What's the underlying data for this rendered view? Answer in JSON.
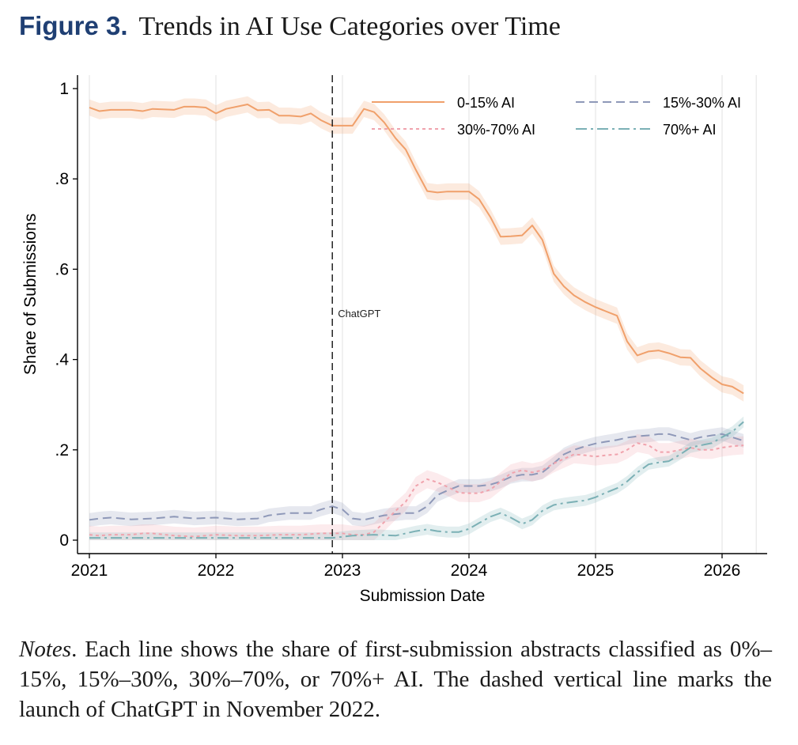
{
  "figure": {
    "label": "Figure 3.",
    "title": "Trends in AI Use Categories over Time"
  },
  "notes": {
    "label": "Notes",
    "text": ". Each line shows the share of first-submission abstracts classified as 0%–15%, 15%–30%, 30%–70%, or 70%+ AI. The dashed vertical line marks the launch of ChatGPT in November 2022."
  },
  "chart_data": {
    "type": "line",
    "title": "Trends in AI Use Categories over Time",
    "xlabel": "Submission Date",
    "ylabel": "Share of Submissions",
    "xlim": [
      2021.0,
      2026.35
    ],
    "ylim": [
      0,
      1
    ],
    "x_ticks": [
      {
        "value": 2021,
        "label": "2021"
      },
      {
        "value": 2022,
        "label": "2022"
      },
      {
        "value": 2023,
        "label": "2023"
      },
      {
        "value": 2024,
        "label": "2024"
      },
      {
        "value": 2025,
        "label": "2025"
      },
      {
        "value": 2026,
        "label": "2026"
      }
    ],
    "y_ticks": [
      {
        "value": 0,
        "label": "0"
      },
      {
        "value": 0.2,
        "label": ".2"
      },
      {
        "value": 0.4,
        "label": ".4"
      },
      {
        "value": 0.6,
        "label": ".6"
      },
      {
        "value": 0.8,
        "label": ".8"
      },
      {
        "value": 1,
        "label": "1"
      }
    ],
    "grid": "vertical",
    "legend_position": "top-right",
    "confidence_band": true,
    "annotation": {
      "label": "ChatGPT",
      "x": 2022.92,
      "style": "dashed vertical line"
    },
    "series": [
      {
        "name": "0-15% AI",
        "color": "#f0a06b",
        "dash": "solid",
        "band": 0.018,
        "points": [
          [
            2021.0,
            0.958
          ],
          [
            2021.08,
            0.95
          ],
          [
            2021.17,
            0.953
          ],
          [
            2021.33,
            0.953
          ],
          [
            2021.42,
            0.95
          ],
          [
            2021.5,
            0.955
          ],
          [
            2021.67,
            0.953
          ],
          [
            2021.75,
            0.96
          ],
          [
            2021.83,
            0.96
          ],
          [
            2021.92,
            0.958
          ],
          [
            2022.0,
            0.945
          ],
          [
            2022.08,
            0.955
          ],
          [
            2022.25,
            0.965
          ],
          [
            2022.33,
            0.952
          ],
          [
            2022.42,
            0.953
          ],
          [
            2022.5,
            0.94
          ],
          [
            2022.58,
            0.94
          ],
          [
            2022.67,
            0.938
          ],
          [
            2022.75,
            0.945
          ],
          [
            2022.83,
            0.93
          ],
          [
            2022.92,
            0.918
          ],
          [
            2023.0,
            0.918
          ],
          [
            2023.08,
            0.918
          ],
          [
            2023.17,
            0.955
          ],
          [
            2023.25,
            0.948
          ],
          [
            2023.33,
            0.925
          ],
          [
            2023.42,
            0.89
          ],
          [
            2023.5,
            0.865
          ],
          [
            2023.58,
            0.82
          ],
          [
            2023.67,
            0.773
          ],
          [
            2023.75,
            0.77
          ],
          [
            2023.83,
            0.772
          ],
          [
            2023.92,
            0.772
          ],
          [
            2024.0,
            0.772
          ],
          [
            2024.08,
            0.755
          ],
          [
            2024.17,
            0.715
          ],
          [
            2024.25,
            0.672
          ],
          [
            2024.33,
            0.673
          ],
          [
            2024.42,
            0.675
          ],
          [
            2024.5,
            0.697
          ],
          [
            2024.58,
            0.665
          ],
          [
            2024.67,
            0.59
          ],
          [
            2024.75,
            0.562
          ],
          [
            2024.83,
            0.542
          ],
          [
            2024.92,
            0.527
          ],
          [
            2025.0,
            0.516
          ],
          [
            2025.08,
            0.507
          ],
          [
            2025.17,
            0.497
          ],
          [
            2025.25,
            0.44
          ],
          [
            2025.33,
            0.409
          ],
          [
            2025.42,
            0.418
          ],
          [
            2025.5,
            0.42
          ],
          [
            2025.58,
            0.414
          ],
          [
            2025.67,
            0.405
          ],
          [
            2025.75,
            0.404
          ],
          [
            2025.83,
            0.38
          ],
          [
            2025.92,
            0.36
          ],
          [
            2026.0,
            0.345
          ],
          [
            2026.08,
            0.34
          ],
          [
            2026.17,
            0.325
          ]
        ]
      },
      {
        "name": "15%-30% AI",
        "color": "#8e98b8",
        "dash": "dashed",
        "band": 0.015,
        "points": [
          [
            2021.0,
            0.045
          ],
          [
            2021.08,
            0.048
          ],
          [
            2021.17,
            0.05
          ],
          [
            2021.33,
            0.046
          ],
          [
            2021.5,
            0.048
          ],
          [
            2021.67,
            0.052
          ],
          [
            2021.83,
            0.048
          ],
          [
            2022.0,
            0.05
          ],
          [
            2022.17,
            0.046
          ],
          [
            2022.33,
            0.048
          ],
          [
            2022.42,
            0.055
          ],
          [
            2022.58,
            0.06
          ],
          [
            2022.75,
            0.06
          ],
          [
            2022.83,
            0.068
          ],
          [
            2022.92,
            0.075
          ],
          [
            2023.0,
            0.068
          ],
          [
            2023.08,
            0.048
          ],
          [
            2023.17,
            0.045
          ],
          [
            2023.33,
            0.055
          ],
          [
            2023.5,
            0.06
          ],
          [
            2023.58,
            0.06
          ],
          [
            2023.67,
            0.075
          ],
          [
            2023.75,
            0.1
          ],
          [
            2023.83,
            0.11
          ],
          [
            2023.92,
            0.12
          ],
          [
            2024.0,
            0.12
          ],
          [
            2024.08,
            0.12
          ],
          [
            2024.17,
            0.123
          ],
          [
            2024.25,
            0.13
          ],
          [
            2024.33,
            0.14
          ],
          [
            2024.42,
            0.145
          ],
          [
            2024.5,
            0.145
          ],
          [
            2024.58,
            0.15
          ],
          [
            2024.67,
            0.17
          ],
          [
            2024.75,
            0.19
          ],
          [
            2024.83,
            0.2
          ],
          [
            2024.92,
            0.208
          ],
          [
            2025.0,
            0.214
          ],
          [
            2025.08,
            0.218
          ],
          [
            2025.17,
            0.222
          ],
          [
            2025.25,
            0.227
          ],
          [
            2025.33,
            0.23
          ],
          [
            2025.42,
            0.232
          ],
          [
            2025.5,
            0.235
          ],
          [
            2025.58,
            0.235
          ],
          [
            2025.67,
            0.228
          ],
          [
            2025.75,
            0.222
          ],
          [
            2025.83,
            0.228
          ],
          [
            2025.92,
            0.232
          ],
          [
            2026.0,
            0.235
          ],
          [
            2026.08,
            0.228
          ],
          [
            2026.17,
            0.22
          ]
        ]
      },
      {
        "name": "30%-70% AI",
        "color": "#f0a3ad",
        "dash": "dotted",
        "band": 0.02,
        "points": [
          [
            2021.0,
            0.012
          ],
          [
            2021.08,
            0.01
          ],
          [
            2021.17,
            0.012
          ],
          [
            2021.33,
            0.012
          ],
          [
            2021.42,
            0.015
          ],
          [
            2021.5,
            0.015
          ],
          [
            2021.67,
            0.01
          ],
          [
            2021.83,
            0.008
          ],
          [
            2022.0,
            0.012
          ],
          [
            2022.17,
            0.01
          ],
          [
            2022.33,
            0.01
          ],
          [
            2022.5,
            0.012
          ],
          [
            2022.67,
            0.012
          ],
          [
            2022.83,
            0.015
          ],
          [
            2022.92,
            0.015
          ],
          [
            2023.0,
            0.015
          ],
          [
            2023.08,
            0.012
          ],
          [
            2023.17,
            0.012
          ],
          [
            2023.25,
            0.018
          ],
          [
            2023.33,
            0.04
          ],
          [
            2023.42,
            0.065
          ],
          [
            2023.5,
            0.085
          ],
          [
            2023.58,
            0.12
          ],
          [
            2023.67,
            0.135
          ],
          [
            2023.75,
            0.128
          ],
          [
            2023.83,
            0.118
          ],
          [
            2023.92,
            0.105
          ],
          [
            2024.0,
            0.104
          ],
          [
            2024.08,
            0.104
          ],
          [
            2024.17,
            0.112
          ],
          [
            2024.25,
            0.13
          ],
          [
            2024.33,
            0.148
          ],
          [
            2024.42,
            0.155
          ],
          [
            2024.5,
            0.15
          ],
          [
            2024.58,
            0.155
          ],
          [
            2024.67,
            0.17
          ],
          [
            2024.75,
            0.18
          ],
          [
            2024.83,
            0.19
          ],
          [
            2024.92,
            0.188
          ],
          [
            2025.0,
            0.185
          ],
          [
            2025.08,
            0.188
          ],
          [
            2025.17,
            0.19
          ],
          [
            2025.25,
            0.2
          ],
          [
            2025.33,
            0.215
          ],
          [
            2025.42,
            0.21
          ],
          [
            2025.5,
            0.195
          ],
          [
            2025.58,
            0.195
          ],
          [
            2025.67,
            0.2
          ],
          [
            2025.75,
            0.205
          ],
          [
            2025.83,
            0.2
          ],
          [
            2025.92,
            0.2
          ],
          [
            2026.0,
            0.205
          ],
          [
            2026.08,
            0.208
          ],
          [
            2026.17,
            0.21
          ]
        ]
      },
      {
        "name": "70%+ AI",
        "color": "#7bb0b5",
        "dash": "dashdot",
        "band": 0.012,
        "points": [
          [
            2021.0,
            0.005
          ],
          [
            2021.25,
            0.005
          ],
          [
            2021.5,
            0.005
          ],
          [
            2021.75,
            0.005
          ],
          [
            2022.0,
            0.005
          ],
          [
            2022.25,
            0.005
          ],
          [
            2022.5,
            0.005
          ],
          [
            2022.75,
            0.005
          ],
          [
            2022.92,
            0.005
          ],
          [
            2023.08,
            0.01
          ],
          [
            2023.25,
            0.012
          ],
          [
            2023.42,
            0.01
          ],
          [
            2023.58,
            0.02
          ],
          [
            2023.67,
            0.024
          ],
          [
            2023.75,
            0.02
          ],
          [
            2023.83,
            0.018
          ],
          [
            2023.92,
            0.018
          ],
          [
            2024.0,
            0.025
          ],
          [
            2024.08,
            0.038
          ],
          [
            2024.17,
            0.052
          ],
          [
            2024.25,
            0.06
          ],
          [
            2024.33,
            0.05
          ],
          [
            2024.42,
            0.036
          ],
          [
            2024.5,
            0.045
          ],
          [
            2024.58,
            0.065
          ],
          [
            2024.67,
            0.078
          ],
          [
            2024.75,
            0.082
          ],
          [
            2024.83,
            0.085
          ],
          [
            2024.92,
            0.088
          ],
          [
            2025.0,
            0.095
          ],
          [
            2025.08,
            0.105
          ],
          [
            2025.17,
            0.115
          ],
          [
            2025.25,
            0.13
          ],
          [
            2025.33,
            0.15
          ],
          [
            2025.42,
            0.168
          ],
          [
            2025.5,
            0.172
          ],
          [
            2025.58,
            0.175
          ],
          [
            2025.67,
            0.19
          ],
          [
            2025.75,
            0.205
          ],
          [
            2025.83,
            0.21
          ],
          [
            2025.92,
            0.215
          ],
          [
            2026.0,
            0.228
          ],
          [
            2026.08,
            0.24
          ],
          [
            2026.17,
            0.262
          ]
        ]
      }
    ]
  }
}
